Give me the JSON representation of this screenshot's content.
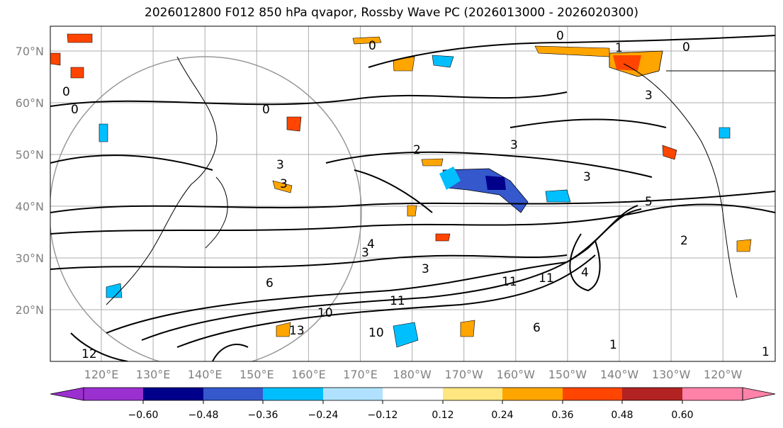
{
  "title": "2026012800 F012 850 hPa qvapor, Rossby Wave PC (2026013000 - 2026020300)",
  "map": {
    "lat_labels": [
      "70°N",
      "60°N",
      "50°N",
      "40°N",
      "30°N",
      "20°N"
    ],
    "lon_labels": [
      "120°E",
      "130°E",
      "140°E",
      "150°E",
      "160°E",
      "170°E",
      "180°W",
      "170°W",
      "160°W",
      "150°W",
      "140°W",
      "130°W",
      "120°W"
    ],
    "contour_labels": [
      "0",
      "0",
      "0",
      "0",
      "1",
      "0",
      "0",
      "3",
      "2",
      "3",
      "3",
      "3",
      "4",
      "3",
      "6",
      "11",
      "11",
      "10",
      "13",
      "11",
      "10",
      "12",
      "1",
      "3",
      "5",
      "6",
      "2",
      "3",
      "4",
      "1"
    ]
  },
  "colorbar": {
    "tick_labels": [
      "−0.60",
      "−0.48",
      "−0.36",
      "−0.24",
      "−0.12",
      "0.12",
      "0.24",
      "0.36",
      "0.48",
      "0.60"
    ],
    "colors": [
      "#9b30d0",
      "#00008b",
      "#3558cc",
      "#00bfff",
      "#b0e2ff",
      "#ffffff",
      "#ffe680",
      "#ffa500",
      "#ff4500",
      "#b22222",
      "#ff82a8"
    ]
  }
}
